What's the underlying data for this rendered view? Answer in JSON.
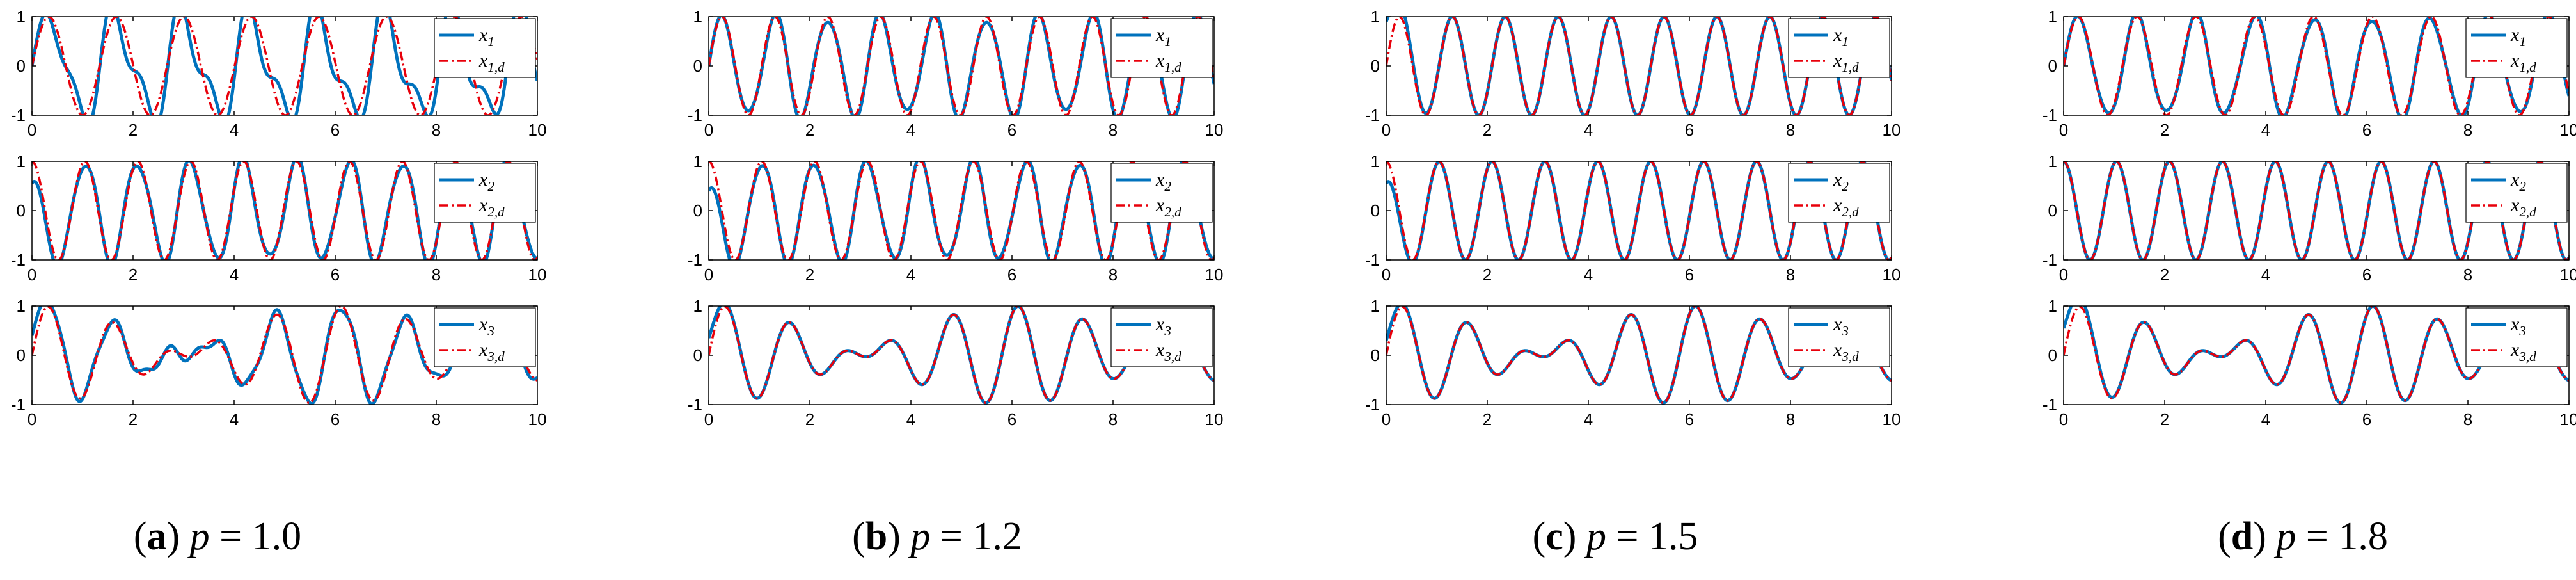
{
  "chart_data": [
    {
      "type": "line",
      "caption": {
        "letter": "a",
        "param": "p",
        "eq": "=",
        "value": "1.0"
      },
      "subplots": [
        {
          "xlim": [
            0,
            10
          ],
          "ylim": [
            -1,
            1
          ],
          "xticks": [
            0,
            2,
            4,
            6,
            8,
            10
          ],
          "yticks": [
            -1,
            0,
            1
          ],
          "legend": {
            "position": "top-right"
          },
          "series": [
            {
              "name": "x1",
              "sub": "1",
              "color": "#0072BD",
              "style": "solid",
              "func": "sin",
              "omega": 4.7,
              "phase": 0,
              "amp": 1,
              "offset": 0,
              "error": 0.45,
              "decay": 0.35,
              "erromega": 9.3
            },
            {
              "name": "x1,d",
              "sub": "1,d",
              "color": "#E8000B",
              "style": "dashdot",
              "func": "sin",
              "omega": 4.7,
              "phase": 0,
              "amp": 1,
              "offset": 0
            }
          ]
        },
        {
          "xlim": [
            0,
            10
          ],
          "ylim": [
            -1,
            1
          ],
          "xticks": [
            0,
            2,
            4,
            6,
            8,
            10
          ],
          "yticks": [
            -1,
            0,
            1
          ],
          "legend": {
            "position": "top-right"
          },
          "series": [
            {
              "name": "x2",
              "sub": "2",
              "color": "#0072BD",
              "style": "solid",
              "func": "cos",
              "omega": 6.0,
              "phase": 0,
              "amp": 1,
              "offset": -0.45,
              "error": 0.12,
              "decay": 0.3,
              "erromega": 11
            },
            {
              "name": "x2,d",
              "sub": "2,d",
              "color": "#E8000B",
              "style": "dashdot",
              "func": "cos",
              "omega": 6.0,
              "phase": 0,
              "amp": 1,
              "offset": 0
            }
          ]
        },
        {
          "xlim": [
            0,
            10
          ],
          "ylim": [
            -1,
            1
          ],
          "xticks": [
            0,
            2,
            4,
            6,
            8,
            10
          ],
          "yticks": [
            -1,
            0,
            1
          ],
          "legend": {
            "position": "top-right"
          },
          "series": [
            {
              "name": "x3",
              "sub": "3",
              "color": "#0072BD",
              "style": "solid",
              "func": "beat",
              "omega": 5.4,
              "omega2": 4.35,
              "amp": 0.5,
              "offset": 0.4,
              "error": 0.1,
              "decay": 0.3,
              "erromega": 12
            },
            {
              "name": "x3,d",
              "sub": "3,d",
              "color": "#E8000B",
              "style": "dashdot",
              "func": "beat",
              "omega": 5.4,
              "omega2": 4.35,
              "amp": 0.5,
              "offset": 0
            }
          ]
        }
      ]
    },
    {
      "type": "line",
      "caption": {
        "letter": "b",
        "param": "p",
        "eq": "=",
        "value": "1.2"
      },
      "subplots": [
        {
          "xlim": [
            0,
            10
          ],
          "ylim": [
            -1,
            1
          ],
          "xticks": [
            0,
            2,
            4,
            6,
            8,
            10
          ],
          "yticks": [
            -1,
            0,
            1
          ],
          "legend": {
            "position": "top-right"
          },
          "series": [
            {
              "name": "x1",
              "sub": "1",
              "color": "#0072BD",
              "style": "solid",
              "func": "sin",
              "omega": 6.0,
              "phase": 0,
              "amp": 1,
              "offset": 0,
              "error": 0.12,
              "decay": 0.5,
              "erromega": 10
            },
            {
              "name": "x1,d",
              "sub": "1,d",
              "color": "#E8000B",
              "style": "dashdot",
              "func": "sin",
              "omega": 6.0,
              "phase": 0,
              "amp": 1,
              "offset": 0
            }
          ]
        },
        {
          "xlim": [
            0,
            10
          ],
          "ylim": [
            -1,
            1
          ],
          "xticks": [
            0,
            2,
            4,
            6,
            8,
            10
          ],
          "yticks": [
            -1,
            0,
            1
          ],
          "legend": {
            "position": "top-right"
          },
          "series": [
            {
              "name": "x2",
              "sub": "2",
              "color": "#0072BD",
              "style": "solid",
              "func": "cos",
              "omega": 6.0,
              "phase": 0,
              "amp": 1,
              "offset": -0.6,
              "error": 0.1,
              "decay": 0.3,
              "erromega": 11
            },
            {
              "name": "x2,d",
              "sub": "2,d",
              "color": "#E8000B",
              "style": "dashdot",
              "func": "cos",
              "omega": 6.0,
              "phase": 0,
              "amp": 1,
              "offset": 0
            }
          ]
        },
        {
          "xlim": [
            0,
            10
          ],
          "ylim": [
            -1,
            1
          ],
          "xticks": [
            0,
            2,
            4,
            6,
            8,
            10
          ],
          "yticks": [
            -1,
            0,
            1
          ],
          "legend": {
            "position": "top-right"
          },
          "series": [
            {
              "name": "x3",
              "sub": "3",
              "color": "#0072BD",
              "style": "solid",
              "func": "beat",
              "omega": 5.4,
              "omega2": 4.35,
              "amp": 0.5,
              "offset": 0.35,
              "error": 0,
              "decay": 0.2,
              "erromega": 12
            },
            {
              "name": "x3,d",
              "sub": "3,d",
              "color": "#E8000B",
              "style": "dashdot",
              "func": "beat",
              "omega": 5.4,
              "omega2": 4.35,
              "amp": 0.5,
              "offset": 0
            }
          ]
        }
      ]
    },
    {
      "type": "line",
      "caption": {
        "letter": "c",
        "param": "p",
        "eq": "=",
        "value": "1.5"
      },
      "subplots": [
        {
          "xlim": [
            0,
            10
          ],
          "ylim": [
            -1,
            1
          ],
          "xticks": [
            0,
            2,
            4,
            6,
            8,
            10
          ],
          "yticks": [
            -1,
            0,
            1
          ],
          "legend": {
            "position": "top-right"
          },
          "series": [
            {
              "name": "x1",
              "sub": "1",
              "color": "#0072BD",
              "style": "solid",
              "func": "sin",
              "omega": 6.0,
              "phase": 0,
              "amp": 1,
              "offset": 0.9,
              "error": 0,
              "decay": 0.25,
              "erromega": 10
            },
            {
              "name": "x1,d",
              "sub": "1,d",
              "color": "#E8000B",
              "style": "dashdot",
              "func": "sin",
              "omega": 6.0,
              "phase": 0,
              "amp": 1,
              "offset": 0
            }
          ]
        },
        {
          "xlim": [
            0,
            10
          ],
          "ylim": [
            -1,
            1
          ],
          "xticks": [
            0,
            2,
            4,
            6,
            8,
            10
          ],
          "yticks": [
            -1,
            0,
            1
          ],
          "legend": {
            "position": "top-right"
          },
          "series": [
            {
              "name": "x2",
              "sub": "2",
              "color": "#0072BD",
              "style": "solid",
              "func": "cos",
              "omega": 6.0,
              "phase": 0,
              "amp": 1,
              "offset": -0.45,
              "error": 0,
              "decay": 0.25,
              "erromega": 11
            },
            {
              "name": "x2,d",
              "sub": "2,d",
              "color": "#E8000B",
              "style": "dashdot",
              "func": "cos",
              "omega": 6.0,
              "phase": 0,
              "amp": 1,
              "offset": 0
            }
          ]
        },
        {
          "xlim": [
            0,
            10
          ],
          "ylim": [
            -1,
            1
          ],
          "xticks": [
            0,
            2,
            4,
            6,
            8,
            10
          ],
          "yticks": [
            -1,
            0,
            1
          ],
          "legend": {
            "position": "top-right"
          },
          "series": [
            {
              "name": "x3",
              "sub": "3",
              "color": "#0072BD",
              "style": "solid",
              "func": "beat",
              "omega": 5.4,
              "omega2": 4.35,
              "amp": 0.5,
              "offset": 0.3,
              "error": 0,
              "decay": 0.2,
              "erromega": 12
            },
            {
              "name": "x3,d",
              "sub": "3,d",
              "color": "#E8000B",
              "style": "dashdot",
              "func": "beat",
              "omega": 5.4,
              "omega2": 4.35,
              "amp": 0.5,
              "offset": 0
            }
          ]
        }
      ]
    },
    {
      "type": "line",
      "caption": {
        "letter": "d",
        "param": "p",
        "eq": "=",
        "value": "1.8"
      },
      "subplots": [
        {
          "xlim": [
            0,
            10
          ],
          "ylim": [
            -1,
            1
          ],
          "xticks": [
            0,
            2,
            4,
            6,
            8,
            10
          ],
          "yticks": [
            -1,
            0,
            1
          ],
          "legend": {
            "position": "top-right"
          },
          "series": [
            {
              "name": "x1",
              "sub": "1",
              "color": "#0072BD",
              "style": "solid",
              "func": "sin",
              "omega": 5.4,
              "phase": 0,
              "amp": 1,
              "offset": 0,
              "error": 0.1,
              "decay": 0.4,
              "erromega": 10
            },
            {
              "name": "x1,d",
              "sub": "1,d",
              "color": "#E8000B",
              "style": "dashdot",
              "func": "sin",
              "omega": 5.4,
              "phase": 0,
              "amp": 1,
              "offset": 0
            }
          ]
        },
        {
          "xlim": [
            0,
            10
          ],
          "ylim": [
            -1,
            1
          ],
          "xticks": [
            0,
            2,
            4,
            6,
            8,
            10
          ],
          "yticks": [
            -1,
            0,
            1
          ],
          "legend": {
            "position": "top-right"
          },
          "series": [
            {
              "name": "x2",
              "sub": "2",
              "color": "#0072BD",
              "style": "solid",
              "func": "cos",
              "omega": 6.0,
              "phase": 0,
              "amp": 1,
              "offset": 0,
              "error": 0,
              "decay": 0.2,
              "erromega": 11
            },
            {
              "name": "x2,d",
              "sub": "2,d",
              "color": "#E8000B",
              "style": "dashdot",
              "func": "cos",
              "omega": 6.0,
              "phase": 0,
              "amp": 1,
              "offset": 0
            }
          ]
        },
        {
          "xlim": [
            0,
            10
          ],
          "ylim": [
            -1,
            1
          ],
          "xticks": [
            0,
            2,
            4,
            6,
            8,
            10
          ],
          "yticks": [
            -1,
            0,
            1
          ],
          "legend": {
            "position": "top-right"
          },
          "series": [
            {
              "name": "x3",
              "sub": "3",
              "color": "#0072BD",
              "style": "solid",
              "func": "beat",
              "omega": 5.4,
              "omega2": 4.35,
              "amp": 0.5,
              "offset": 0.55,
              "error": 0,
              "decay": 0.3,
              "erromega": 12
            },
            {
              "name": "x3,d",
              "sub": "3,d",
              "color": "#E8000B",
              "style": "dashdot",
              "func": "beat",
              "omega": 5.4,
              "omega2": 4.35,
              "amp": 0.5,
              "offset": 0
            }
          ]
        }
      ]
    }
  ]
}
